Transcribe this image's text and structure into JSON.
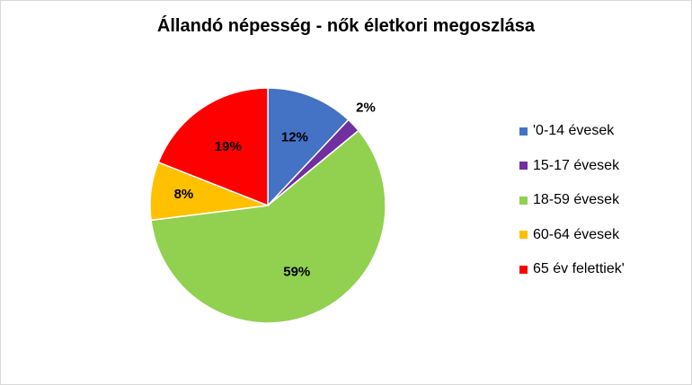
{
  "chart_data": {
    "type": "pie",
    "title": "Állandó népesség - nők életkori megoszlása",
    "categories": [
      "'0-14 évesek",
      "15-17 évesek",
      "18-59 évesek",
      "60-64 évesek",
      "65 év felettiek'"
    ],
    "values": [
      12,
      2,
      59,
      8,
      19
    ],
    "data_labels": [
      "12%",
      "2%",
      "59%",
      "8%",
      "19%"
    ],
    "colors": [
      "#4472C4",
      "#7030A0",
      "#92D050",
      "#FFC000",
      "#FF0000"
    ],
    "legend_position": "right"
  }
}
